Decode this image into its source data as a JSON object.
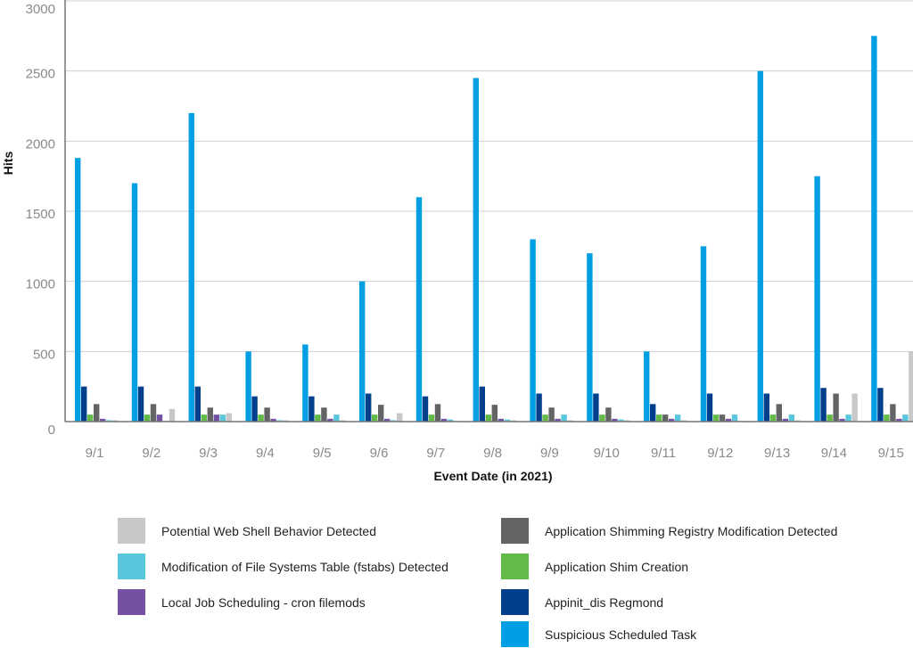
{
  "chart_data": {
    "type": "bar",
    "title": "",
    "xlabel": "Event Date (in 2021)",
    "ylabel": "Hits",
    "ylim": [
      0,
      3000
    ],
    "yticks": [
      0,
      500,
      1000,
      1500,
      2000,
      2500,
      3000
    ],
    "grid": true,
    "legend_position": "bottom",
    "categories": [
      "9/1",
      "9/2",
      "9/3",
      "9/4",
      "9/5",
      "9/6",
      "9/7",
      "9/8",
      "9/9",
      "9/10",
      "9/11",
      "9/12",
      "9/13",
      "9/14",
      "9/15"
    ],
    "series": [
      {
        "name": "Suspicious Scheduled Task",
        "color": "#009fe3",
        "values": [
          1880,
          1700,
          2200,
          500,
          550,
          1000,
          1600,
          2450,
          1300,
          1200,
          500,
          1250,
          2500,
          1750,
          2750
        ]
      },
      {
        "name": "Appinit_dis Regmond",
        "color": "#003f8c",
        "values": [
          250,
          250,
          250,
          180,
          180,
          200,
          180,
          250,
          200,
          200,
          125,
          200,
          200,
          240,
          240
        ]
      },
      {
        "name": "Application Shim Creation",
        "color": "#62bb46",
        "values": [
          50,
          50,
          50,
          50,
          50,
          50,
          50,
          50,
          50,
          50,
          50,
          50,
          50,
          50,
          50
        ]
      },
      {
        "name": "Application Shimming Registry Modification Detected",
        "color": "#636466",
        "values": [
          125,
          125,
          100,
          100,
          100,
          120,
          125,
          120,
          100,
          100,
          50,
          50,
          125,
          200,
          125
        ]
      },
      {
        "name": "Local Job Scheduling - cron filemods",
        "color": "#7451a3",
        "values": [
          20,
          50,
          50,
          20,
          20,
          20,
          20,
          20,
          20,
          20,
          20,
          20,
          20,
          20,
          20
        ]
      },
      {
        "name": "Modification of File Systems Table (fstabs) Detected",
        "color": "#58c7dc",
        "values": [
          10,
          5,
          50,
          10,
          50,
          10,
          15,
          15,
          50,
          15,
          50,
          50,
          50,
          50,
          50
        ]
      },
      {
        "name": "Potential Web Shell Behavior Detected",
        "color": "#c8c8ca",
        "values": [
          10,
          90,
          60,
          10,
          10,
          60,
          5,
          10,
          10,
          10,
          10,
          5,
          10,
          200,
          500
        ]
      }
    ],
    "legend_order": [
      6,
      3,
      5,
      2,
      4,
      1,
      0
    ]
  }
}
